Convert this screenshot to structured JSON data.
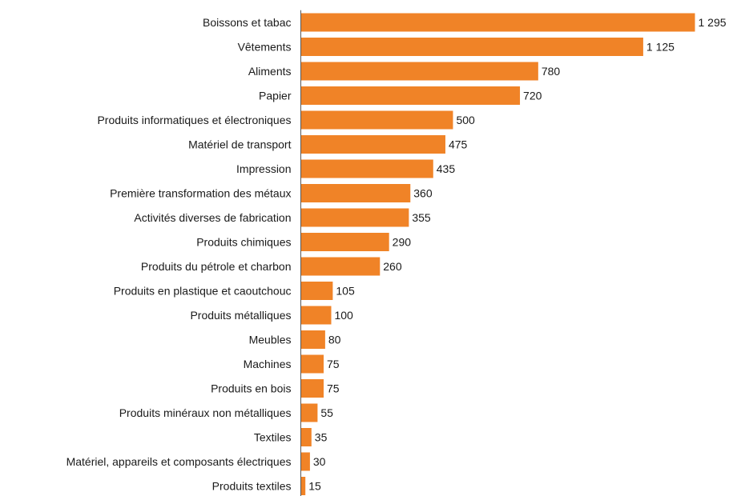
{
  "colors": {
    "bar": "#f08327",
    "axis": "#595959",
    "text": "#1a1a1a"
  },
  "chart_data": {
    "type": "bar",
    "orientation": "horizontal",
    "title": "",
    "xlabel": "",
    "ylabel": "",
    "xlim": [
      0,
      1295
    ],
    "grid": false,
    "legend": "none",
    "categories": [
      "Boissons et tabac",
      "Vêtements",
      "Aliments",
      "Papier",
      "Produits informatiques et électroniques",
      "Matériel de transport",
      "Impression",
      "Première transformation des métaux",
      "Activités diverses de fabrication",
      "Produits chimiques",
      "Produits du pétrole et charbon",
      "Produits en plastique et caoutchouc",
      "Produits métalliques",
      "Meubles",
      "Machines",
      "Produits en bois",
      "Produits minéraux non métalliques",
      "Textiles",
      "Matériel, appareils et composants électriques",
      "Produits textiles"
    ],
    "values": [
      1295,
      1125,
      780,
      720,
      500,
      475,
      435,
      360,
      355,
      290,
      260,
      105,
      100,
      80,
      75,
      75,
      55,
      35,
      30,
      15
    ],
    "value_labels": [
      "1 295",
      "1 125",
      "780",
      "720",
      "500",
      "475",
      "435",
      "360",
      "355",
      "290",
      "260",
      "105",
      "100",
      "80",
      "75",
      "75",
      "55",
      "35",
      "30",
      "15"
    ]
  }
}
